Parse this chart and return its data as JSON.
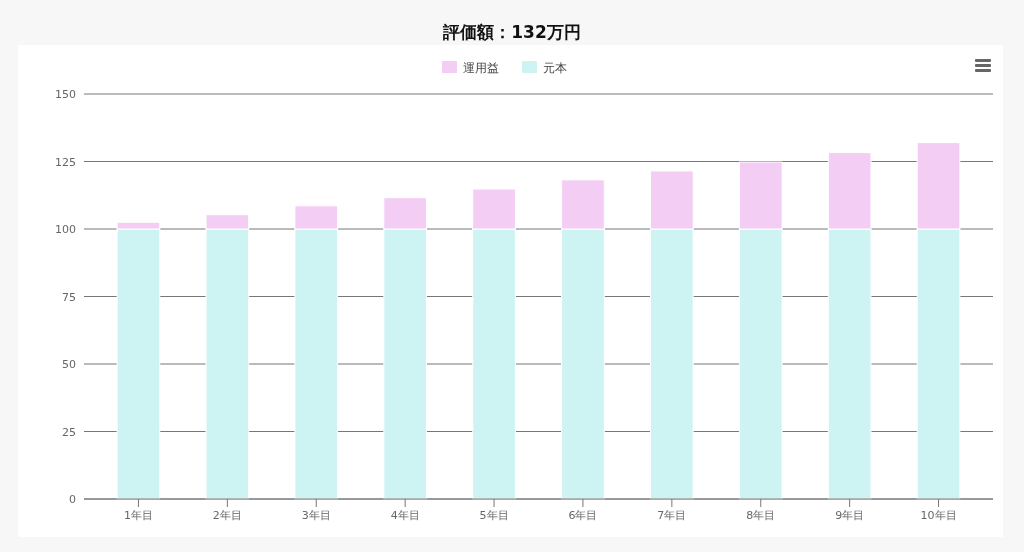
{
  "chart_data": {
    "type": "bar",
    "title": "評価額：132万円",
    "stacked": true,
    "categories": [
      "1年目",
      "2年目",
      "3年目",
      "4年目",
      "5年目",
      "6年目",
      "7年目",
      "8年目",
      "9年目",
      "10年目"
    ],
    "series": [
      {
        "name": "元本",
        "color": "#cdf4f3",
        "values": [
          100,
          100,
          100,
          100,
          100,
          100,
          100,
          100,
          100,
          100
        ]
      },
      {
        "name": "運用益",
        "color": "#f4cdf4",
        "values": [
          2.5,
          5.3,
          8.6,
          11.6,
          14.8,
          18.2,
          21.5,
          24.8,
          28.3,
          32
        ]
      }
    ],
    "ylim": [
      0,
      150
    ],
    "yticks": [
      0,
      25,
      50,
      75,
      100,
      125,
      150
    ],
    "grid": "y",
    "legend": "top"
  }
}
